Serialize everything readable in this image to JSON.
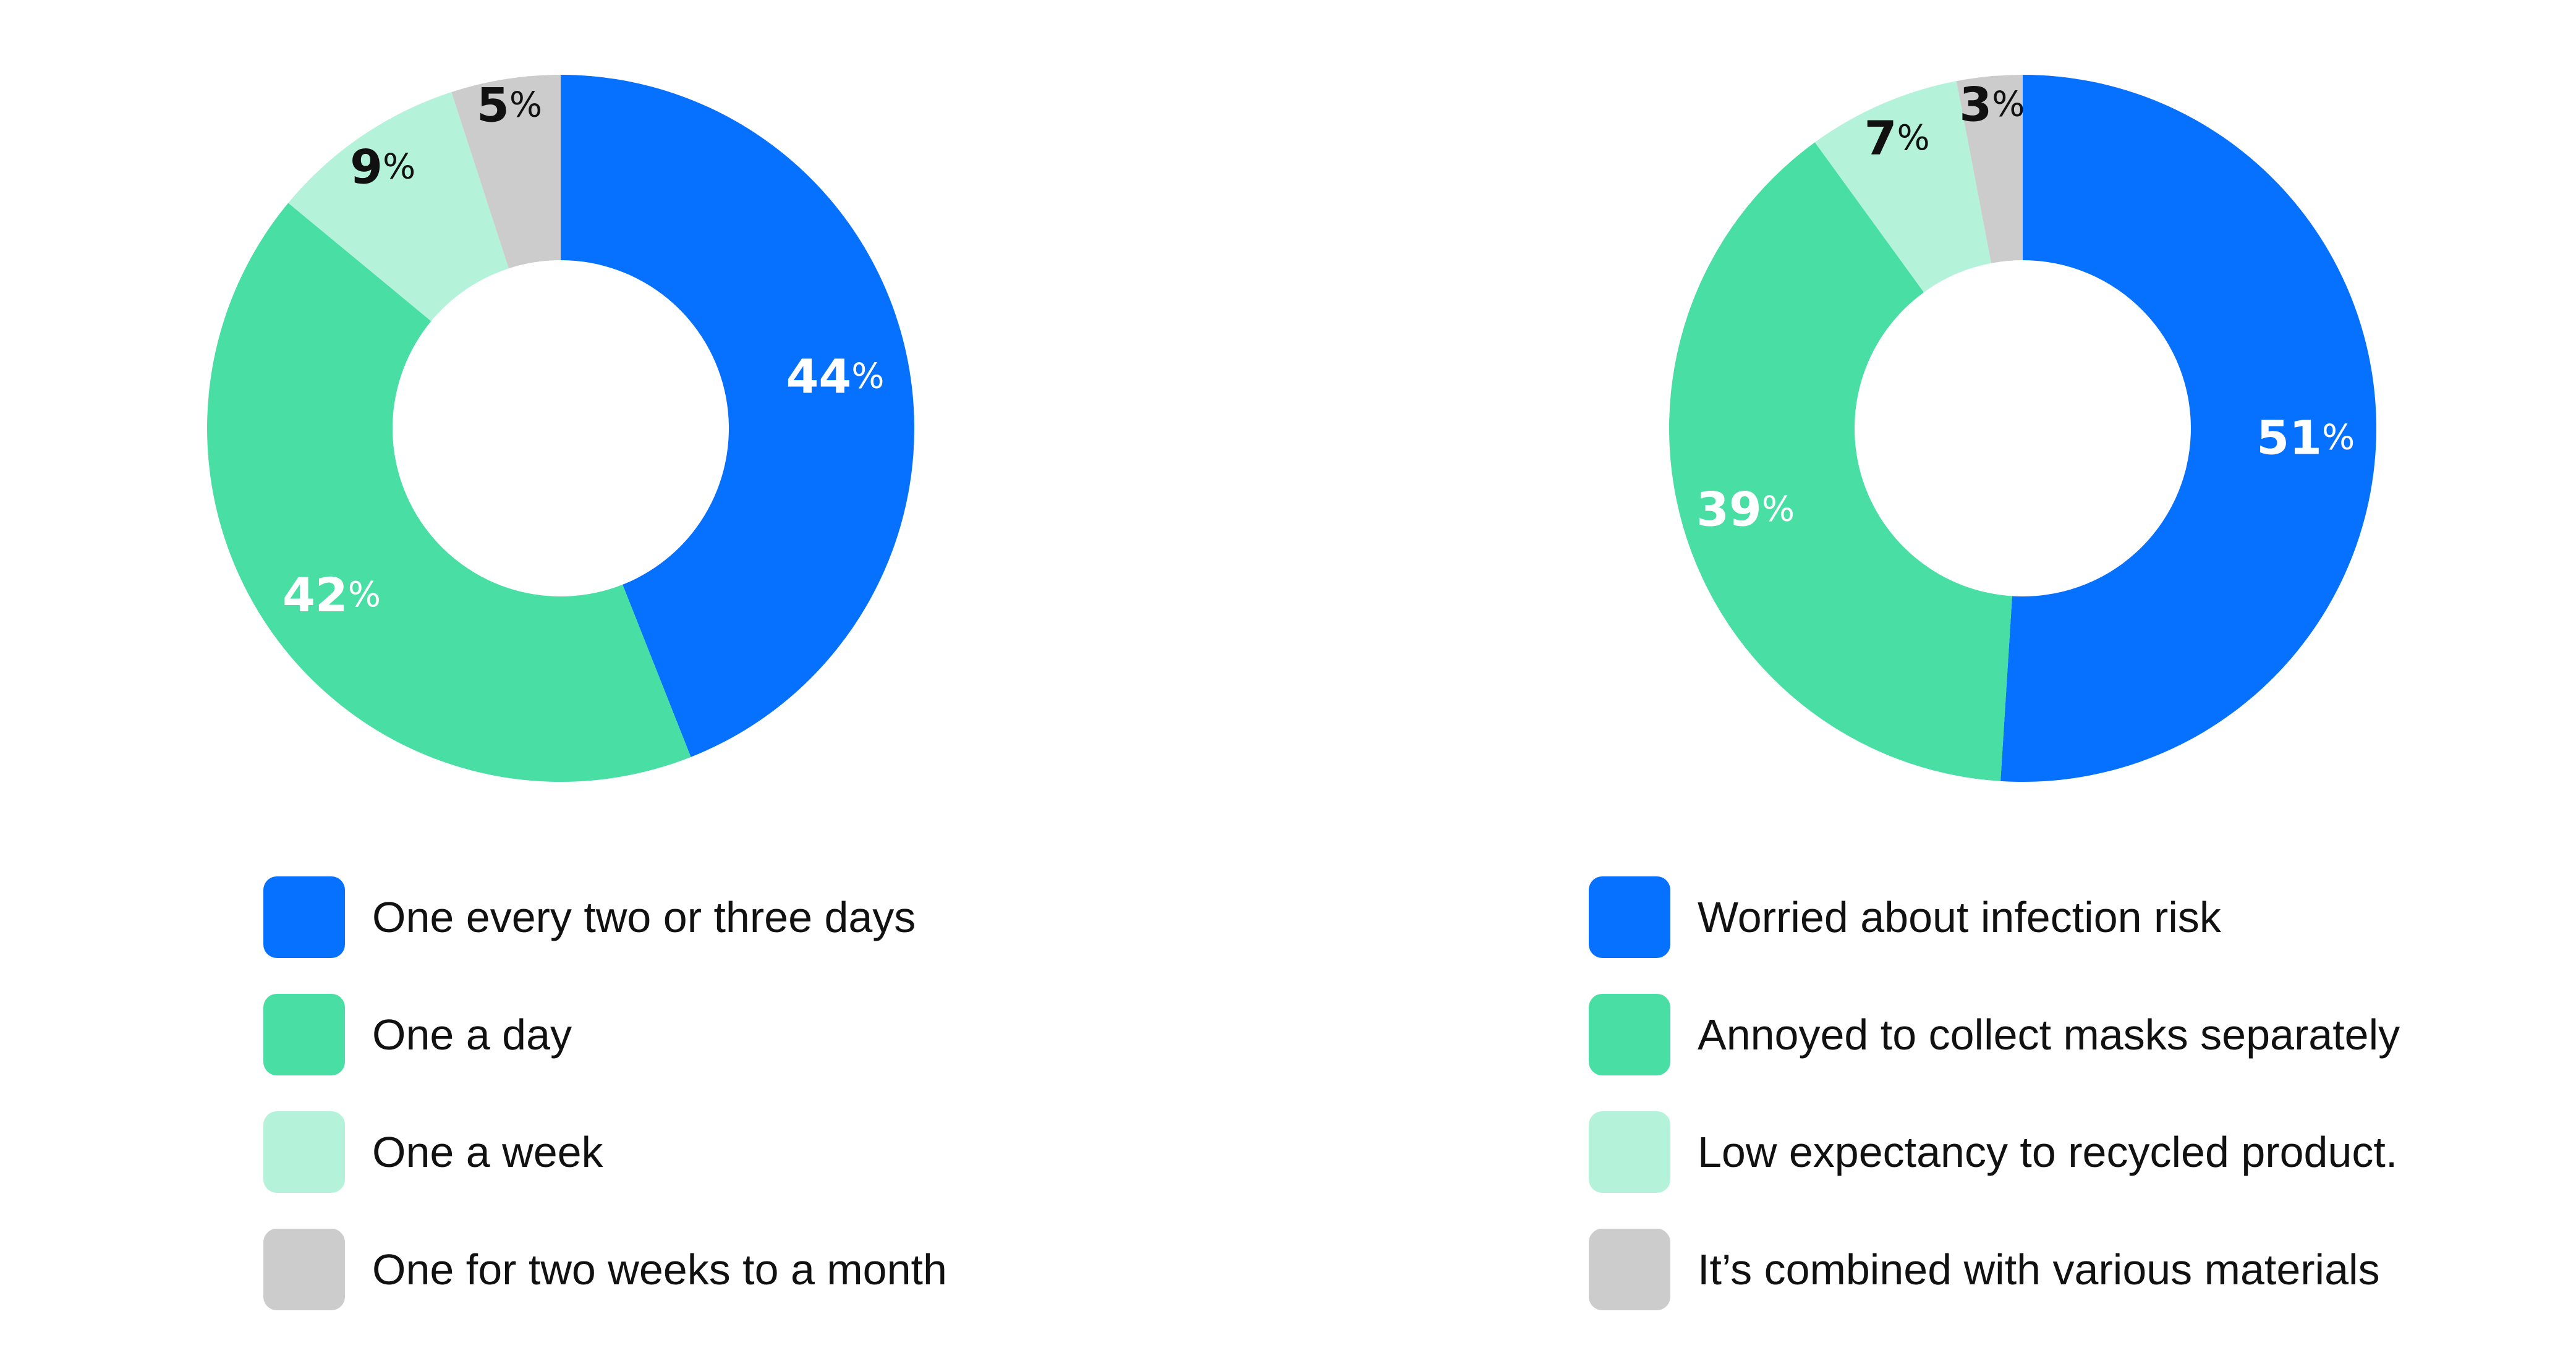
{
  "chart_data": [
    {
      "type": "pie",
      "variant": "donut",
      "title": "",
      "categories": [
        "One every two or three days",
        "One a day",
        "One a week",
        "One for two weeks to a month"
      ],
      "values": [
        44,
        42,
        9,
        5
      ],
      "labels": [
        {
          "number": "44",
          "unit": "%"
        },
        {
          "number": "42",
          "unit": "%"
        },
        {
          "number": "9",
          "unit": "%"
        },
        {
          "number": "5",
          "unit": "%"
        }
      ],
      "colors": [
        "#0670ff",
        "#48dea4",
        "#b5f2da",
        "#cccccc"
      ],
      "label_colors": [
        "#ffffff",
        "#ffffff",
        "#111111",
        "#111111"
      ],
      "legend_position": "bottom"
    },
    {
      "type": "pie",
      "variant": "donut",
      "title": "",
      "categories": [
        "Worried about infection risk",
        "Annoyed to collect masks separately",
        "Low expectancy to recycled product.",
        "It’s combined with various materials"
      ],
      "values": [
        51,
        39,
        7,
        3
      ],
      "labels": [
        {
          "number": "51",
          "unit": "%"
        },
        {
          "number": "39",
          "unit": "%"
        },
        {
          "number": "7",
          "unit": "%"
        },
        {
          "number": "3",
          "unit": "%"
        }
      ],
      "colors": [
        "#0670ff",
        "#48dea4",
        "#b5f2da",
        "#cccccc"
      ],
      "label_colors": [
        "#ffffff",
        "#ffffff",
        "#111111",
        "#111111"
      ],
      "legend_position": "bottom"
    }
  ]
}
